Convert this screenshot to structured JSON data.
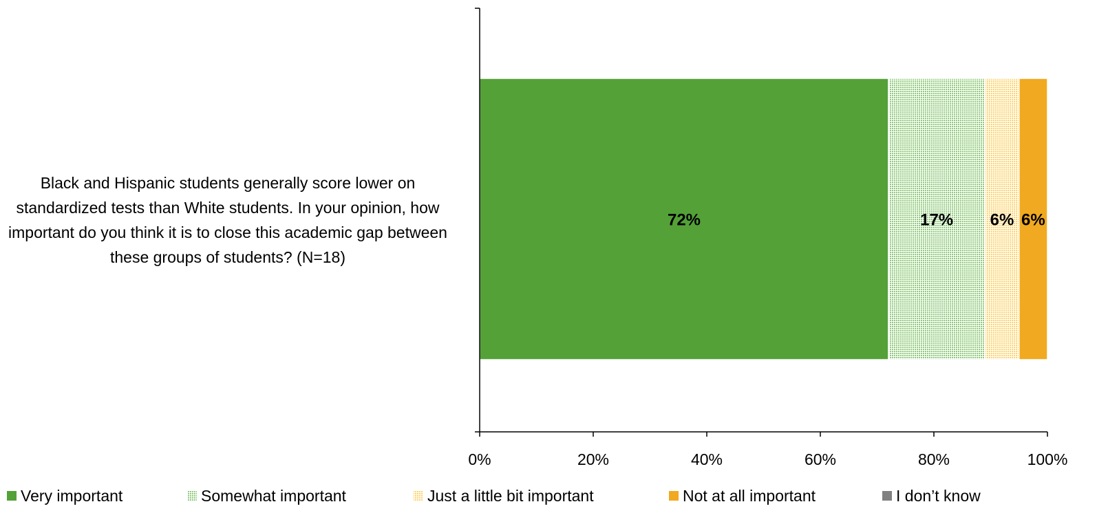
{
  "chart_data": {
    "type": "bar",
    "orientation": "horizontal",
    "stacked": true,
    "categories": [
      "Black and Hispanic students generally score lower on standardized tests than White students. In your opinion, how important do you think it is to close this academic gap between these groups of students? (N=18)"
    ],
    "category_lines": [
      "Black and Hispanic students generally score lower on",
      "standardized tests than White students. In your opinion, how",
      "important do you think it is to close this academic gap between",
      "these groups of students? (N=18)"
    ],
    "series": [
      {
        "name": "Very important",
        "values": [
          0.72
        ],
        "label": "72%",
        "color": "#54a138",
        "pattern": "solid"
      },
      {
        "name": "Somewhat important",
        "values": [
          0.17
        ],
        "label": "17%",
        "color": "#8fc97a",
        "pattern": "grid"
      },
      {
        "name": "Just a little bit important",
        "values": [
          0.06
        ],
        "label": "6%",
        "color": "#fcd36c",
        "pattern": "grid"
      },
      {
        "name": "Not at all important",
        "values": [
          0.06
        ],
        "label": "6%",
        "color": "#f0a920",
        "pattern": "solid"
      },
      {
        "name": "I don’t know",
        "values": [
          0
        ],
        "label": "",
        "color": "#808080",
        "pattern": "solid"
      }
    ],
    "xlim": [
      0,
      1
    ],
    "xticks": [
      0,
      0.2,
      0.4,
      0.6,
      0.8,
      1.0
    ],
    "xtick_labels": [
      "0%",
      "20%",
      "40%",
      "60%",
      "80%",
      "100%"
    ],
    "legend_position": "bottom",
    "grid": false,
    "title": "",
    "xlabel": "",
    "ylabel": ""
  }
}
